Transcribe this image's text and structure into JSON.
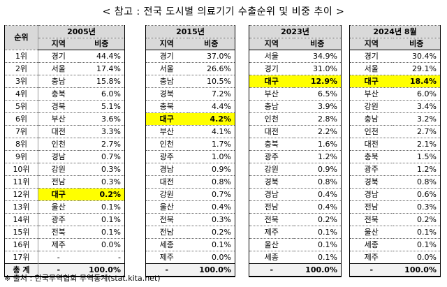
{
  "title": "< 참고 : 전국 도시별 의료기기 수출순위 및 비중 추이 >",
  "rank_header": "순위",
  "sub_region": "지역",
  "sub_share": "비중",
  "ranks": [
    "1위",
    "2위",
    "3위",
    "4위",
    "5위",
    "6위",
    "7위",
    "8위",
    "9위",
    "10위",
    "11위",
    "12위",
    "13위",
    "14위",
    "15위",
    "16위",
    "17위"
  ],
  "total_label": "총  계",
  "footnote": "※ 출처 : 한국무역협회 무역통계(stat.kita.net)",
  "highlight_color": "#ffff00",
  "tables": [
    {
      "period": "2005년",
      "rows": [
        [
          "경기",
          "44.4%"
        ],
        [
          "서울",
          "17.4%"
        ],
        [
          "충남",
          "15.8%"
        ],
        [
          "충북",
          "6.0%"
        ],
        [
          "경북",
          "5.1%"
        ],
        [
          "부산",
          "3.6%"
        ],
        [
          "대전",
          "3.3%"
        ],
        [
          "인천",
          "2.7%"
        ],
        [
          "경남",
          "0.7%"
        ],
        [
          "강원",
          "0.3%"
        ],
        [
          "전남",
          "0.3%"
        ],
        [
          "대구",
          "0.2%"
        ],
        [
          "울산",
          "0.1%"
        ],
        [
          "광주",
          "0.1%"
        ],
        [
          "전북",
          "0.1%"
        ],
        [
          "제주",
          "0.0%"
        ],
        [
          "-",
          "-"
        ]
      ],
      "highlight_row": 11,
      "total": [
        "-",
        "100.0%"
      ]
    },
    {
      "period": "2015년",
      "rows": [
        [
          "경기",
          "37.0%"
        ],
        [
          "서울",
          "26.6%"
        ],
        [
          "충남",
          "10.5%"
        ],
        [
          "경북",
          "7.2%"
        ],
        [
          "충북",
          "4.4%"
        ],
        [
          "대구",
          "4.2%"
        ],
        [
          "부산",
          "4.1%"
        ],
        [
          "인천",
          "1.7%"
        ],
        [
          "광주",
          "1.0%"
        ],
        [
          "경남",
          "0.9%"
        ],
        [
          "대전",
          "0.8%"
        ],
        [
          "강원",
          "0.7%"
        ],
        [
          "울산",
          "0.4%"
        ],
        [
          "전북",
          "0.3%"
        ],
        [
          "전남",
          "0.2%"
        ],
        [
          "세종",
          "0.1%"
        ],
        [
          "제주",
          "0.0%"
        ]
      ],
      "highlight_row": 5,
      "total": [
        "-",
        "100.0%"
      ]
    },
    {
      "period": "2023년",
      "rows": [
        [
          "서울",
          "34.9%"
        ],
        [
          "경기",
          "31.0%"
        ],
        [
          "대구",
          "12.9%"
        ],
        [
          "부산",
          "6.5%"
        ],
        [
          "충남",
          "3.9%"
        ],
        [
          "인천",
          "2.8%"
        ],
        [
          "대전",
          "2.2%"
        ],
        [
          "충북",
          "1.6%"
        ],
        [
          "광주",
          "1.2%"
        ],
        [
          "강원",
          "0.9%"
        ],
        [
          "경북",
          "0.8%"
        ],
        [
          "경남",
          "0.4%"
        ],
        [
          "전남",
          "0.4%"
        ],
        [
          "전북",
          "0.2%"
        ],
        [
          "제주",
          "0.1%"
        ],
        [
          "울산",
          "0.1%"
        ],
        [
          "세종",
          "0.1%"
        ]
      ],
      "highlight_row": 2,
      "total": [
        "-",
        "100.0%"
      ]
    },
    {
      "period": "2024년  8월",
      "rows": [
        [
          "경기",
          "30.4%"
        ],
        [
          "서울",
          "29.1%"
        ],
        [
          "대구",
          "18.4%"
        ],
        [
          "부산",
          "6.0%"
        ],
        [
          "강원",
          "3.4%"
        ],
        [
          "충남",
          "3.2%"
        ],
        [
          "인천",
          "2.7%"
        ],
        [
          "대전",
          "2.1%"
        ],
        [
          "충북",
          "1.5%"
        ],
        [
          "광주",
          "1.2%"
        ],
        [
          "경북",
          "0.8%"
        ],
        [
          "경남",
          "0.6%"
        ],
        [
          "전남",
          "0.3%"
        ],
        [
          "전북",
          "0.2%"
        ],
        [
          "울산",
          "0.1%"
        ],
        [
          "세종",
          "0.1%"
        ],
        [
          "제주",
          "0.0%"
        ]
      ],
      "highlight_row": 2,
      "total": [
        "-",
        "100.0%"
      ]
    }
  ]
}
